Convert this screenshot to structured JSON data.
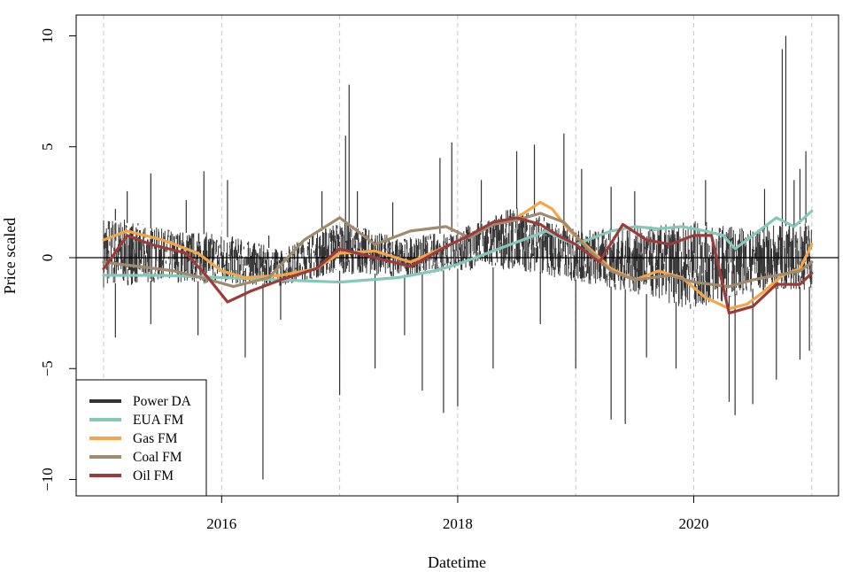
{
  "chart_data": {
    "type": "line",
    "title": "",
    "xlabel": "Datetime",
    "ylabel": "Price scaled",
    "xlim": [
      2015.0,
      2021.0
    ],
    "ylim": [
      -10.5,
      10.5
    ],
    "x_ticks": [
      2016,
      2018,
      2020
    ],
    "x_tick_labels": [
      "2016",
      "2018",
      "2020"
    ],
    "y_ticks": [
      -10,
      -5,
      0,
      5,
      10
    ],
    "y_tick_labels": [
      "−10",
      "−5",
      "0",
      "5",
      "10"
    ],
    "vertical_gridlines_at": [
      2015.0,
      2016.0,
      2017.0,
      2018.0,
      2019.0,
      2020.0,
      2021.0
    ],
    "horizontal_reference_line": 0,
    "legend_position": "bottom-left",
    "series": [
      {
        "name": "Power DA",
        "color": "#333333",
        "envelope": {
          "x": [
            2015.0,
            2015.5,
            2016.0,
            2016.5,
            2017.0,
            2017.5,
            2018.0,
            2018.5,
            2019.0,
            2019.5,
            2020.0,
            2020.5,
            2021.0
          ],
          "high": [
            1.8,
            1.2,
            1.0,
            0.3,
            1.6,
            0.8,
            1.2,
            2.2,
            1.2,
            1.2,
            1.5,
            1.2,
            1.6
          ],
          "low": [
            -1.2,
            -1.0,
            -1.1,
            -1.2,
            -0.6,
            -0.8,
            -0.5,
            -0.4,
            -1.0,
            -1.5,
            -2.2,
            -1.4,
            -1.3
          ]
        },
        "spikes": [
          [
            2015.1,
            2.2
          ],
          [
            2015.2,
            3.0
          ],
          [
            2015.4,
            3.8
          ],
          [
            2015.7,
            2.6
          ],
          [
            2015.85,
            3.9
          ],
          [
            2016.05,
            3.5
          ],
          [
            2016.4,
            1.0
          ],
          [
            2016.85,
            3.0
          ],
          [
            2017.05,
            5.5
          ],
          [
            2017.08,
            7.8
          ],
          [
            2017.15,
            3.0
          ],
          [
            2017.45,
            2.5
          ],
          [
            2017.85,
            4.5
          ],
          [
            2017.95,
            5.2
          ],
          [
            2018.2,
            3.5
          ],
          [
            2018.5,
            4.8
          ],
          [
            2018.65,
            5.1
          ],
          [
            2018.9,
            5.6
          ],
          [
            2019.05,
            4.0
          ],
          [
            2019.3,
            3.2
          ],
          [
            2019.5,
            3.0
          ],
          [
            2020.1,
            3.5
          ],
          [
            2020.6,
            3.1
          ],
          [
            2020.75,
            9.4
          ],
          [
            2020.78,
            10.0
          ],
          [
            2020.85,
            3.5
          ],
          [
            2020.9,
            4.0
          ],
          [
            2020.95,
            4.8
          ],
          [
            2015.1,
            -3.6
          ],
          [
            2015.4,
            -3.0
          ],
          [
            2015.8,
            -3.5
          ],
          [
            2016.2,
            -4.5
          ],
          [
            2016.35,
            -10.0
          ],
          [
            2016.5,
            -2.8
          ],
          [
            2017.0,
            -6.2
          ],
          [
            2017.3,
            -5.0
          ],
          [
            2017.55,
            -3.5
          ],
          [
            2017.7,
            -6.0
          ],
          [
            2017.88,
            -7.0
          ],
          [
            2018.0,
            -6.7
          ],
          [
            2018.3,
            -5.0
          ],
          [
            2018.7,
            -3.0
          ],
          [
            2019.0,
            -5.0
          ],
          [
            2019.3,
            -7.3
          ],
          [
            2019.42,
            -7.5
          ],
          [
            2019.6,
            -4.5
          ],
          [
            2019.85,
            -5.0
          ],
          [
            2020.3,
            -6.5
          ],
          [
            2020.35,
            -7.1
          ],
          [
            2020.5,
            -6.6
          ],
          [
            2020.7,
            -5.5
          ],
          [
            2020.9,
            -4.6
          ],
          [
            2020.98,
            -4.2
          ]
        ]
      },
      {
        "name": "EUA FM",
        "color": "#84c8b8",
        "x": [
          2015.0,
          2015.5,
          2016.0,
          2016.5,
          2017.0,
          2017.5,
          2017.8,
          2018.0,
          2018.2,
          2018.4,
          2018.6,
          2018.75,
          2018.9,
          2019.0,
          2019.3,
          2019.5,
          2019.7,
          2019.9,
          2020.1,
          2020.25,
          2020.35,
          2020.5,
          2020.7,
          2020.85,
          2021.0
        ],
        "y": [
          -0.8,
          -0.8,
          -0.9,
          -1.0,
          -1.1,
          -0.9,
          -0.6,
          -0.3,
          0.1,
          0.5,
          0.9,
          1.2,
          0.8,
          0.6,
          1.2,
          1.4,
          1.3,
          1.4,
          1.2,
          1.0,
          0.4,
          1.0,
          1.8,
          1.4,
          2.1
        ]
      },
      {
        "name": "Gas FM",
        "color": "#f4a548",
        "x": [
          2015.0,
          2015.2,
          2015.5,
          2015.8,
          2016.0,
          2016.2,
          2016.5,
          2016.8,
          2017.0,
          2017.3,
          2017.6,
          2017.9,
          2018.1,
          2018.3,
          2018.5,
          2018.7,
          2018.8,
          2018.95,
          2019.1,
          2019.3,
          2019.5,
          2019.7,
          2019.9,
          2020.1,
          2020.3,
          2020.45,
          2020.6,
          2020.75,
          2020.9,
          2021.0
        ],
        "y": [
          0.8,
          1.2,
          0.8,
          0.2,
          -0.6,
          -0.9,
          -0.8,
          -0.5,
          0.2,
          0.3,
          -0.2,
          0.5,
          1.0,
          1.5,
          1.8,
          2.5,
          2.2,
          1.2,
          0.5,
          -0.5,
          -1.0,
          -0.6,
          -0.9,
          -1.8,
          -2.3,
          -2.1,
          -1.5,
          -0.8,
          -0.5,
          0.6
        ]
      },
      {
        "name": "Coal FM",
        "color": "#a08b6e",
        "x": [
          2015.0,
          2015.3,
          2015.6,
          2015.9,
          2016.1,
          2016.4,
          2016.7,
          2017.0,
          2017.3,
          2017.6,
          2017.9,
          2018.1,
          2018.3,
          2018.5,
          2018.7,
          2018.9,
          2019.1,
          2019.3,
          2019.5,
          2019.8,
          2020.0,
          2020.3,
          2020.5,
          2020.7,
          2020.9,
          2021.0
        ],
        "y": [
          -0.2,
          -0.4,
          -0.6,
          -1.0,
          -1.3,
          -0.9,
          0.8,
          1.8,
          0.6,
          1.2,
          1.4,
          0.9,
          1.5,
          1.7,
          2.0,
          1.6,
          0.4,
          -0.6,
          -1.0,
          -0.8,
          -1.1,
          -1.3,
          -1.0,
          -0.8,
          -0.6,
          -0.2
        ]
      },
      {
        "name": "Oil FM",
        "color": "#9c3b3b",
        "x": [
          2015.0,
          2015.2,
          2015.4,
          2015.7,
          2015.9,
          2016.05,
          2016.25,
          2016.5,
          2016.8,
          2017.0,
          2017.3,
          2017.6,
          2017.9,
          2018.1,
          2018.3,
          2018.5,
          2018.7,
          2018.85,
          2019.0,
          2019.2,
          2019.4,
          2019.6,
          2019.8,
          2020.0,
          2020.15,
          2020.3,
          2020.5,
          2020.7,
          2020.9,
          2021.0
        ],
        "y": [
          -0.5,
          1.0,
          0.6,
          0.2,
          -1.0,
          -2.0,
          -1.5,
          -1.0,
          -0.5,
          0.4,
          0.0,
          -0.4,
          0.5,
          1.0,
          1.6,
          1.8,
          1.5,
          1.0,
          0.6,
          -0.2,
          1.5,
          0.8,
          0.6,
          1.0,
          1.0,
          -2.5,
          -2.2,
          -1.2,
          -1.2,
          -0.7
        ]
      }
    ]
  }
}
